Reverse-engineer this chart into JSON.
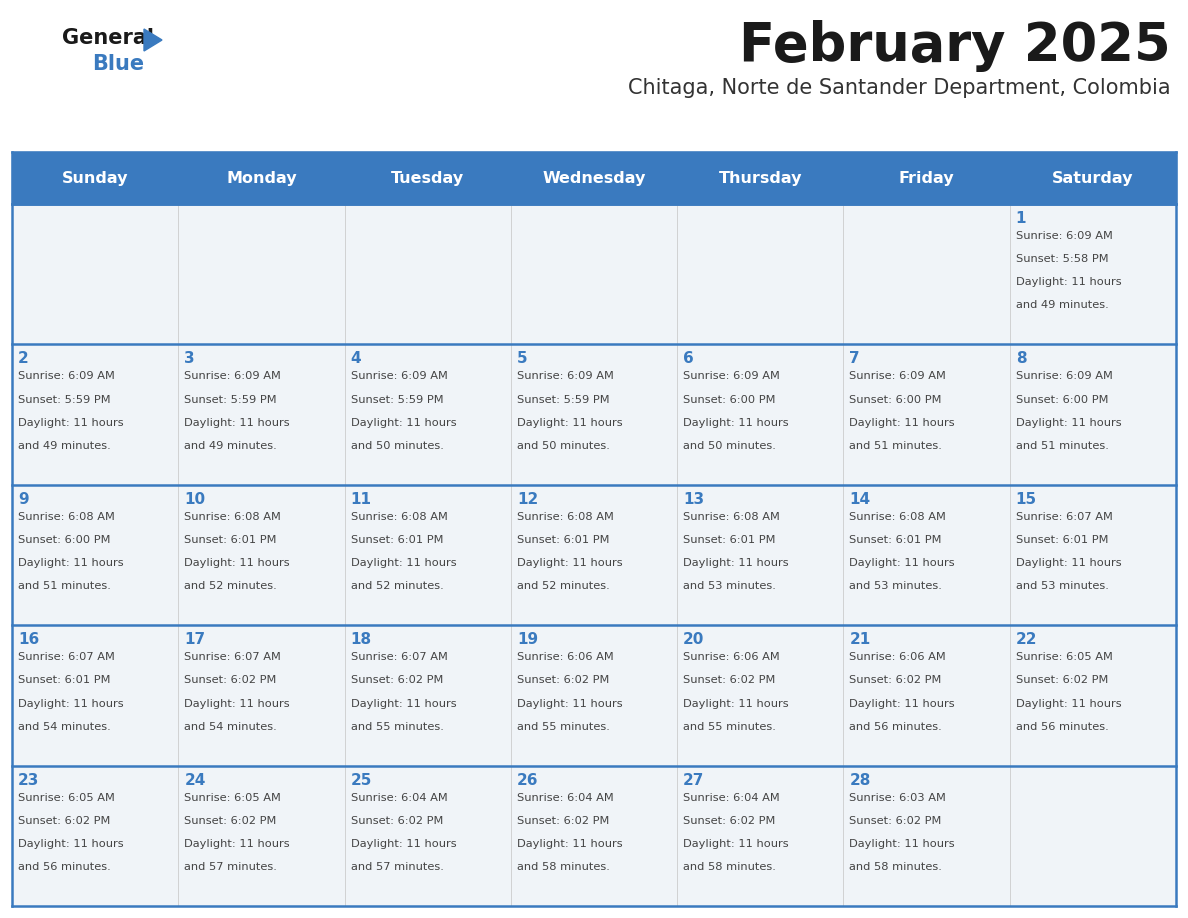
{
  "title": "February 2025",
  "subtitle": "Chitaga, Norte de Santander Department, Colombia",
  "header_bg": "#3a7abf",
  "header_text_color": "#ffffff",
  "day_names": [
    "Sunday",
    "Monday",
    "Tuesday",
    "Wednesday",
    "Thursday",
    "Friday",
    "Saturday"
  ],
  "cell_bg": "#f0f4f8",
  "divider_color": "#3a7abf",
  "number_color": "#3a7abf",
  "text_color": "#444444",
  "calendar": [
    [
      null,
      null,
      null,
      null,
      null,
      null,
      {
        "day": 1,
        "sunrise": "6:09 AM",
        "sunset": "5:58 PM",
        "daylight": "11 hours and 49 minutes"
      }
    ],
    [
      {
        "day": 2,
        "sunrise": "6:09 AM",
        "sunset": "5:59 PM",
        "daylight": "11 hours and 49 minutes"
      },
      {
        "day": 3,
        "sunrise": "6:09 AM",
        "sunset": "5:59 PM",
        "daylight": "11 hours and 49 minutes"
      },
      {
        "day": 4,
        "sunrise": "6:09 AM",
        "sunset": "5:59 PM",
        "daylight": "11 hours and 50 minutes"
      },
      {
        "day": 5,
        "sunrise": "6:09 AM",
        "sunset": "5:59 PM",
        "daylight": "11 hours and 50 minutes"
      },
      {
        "day": 6,
        "sunrise": "6:09 AM",
        "sunset": "6:00 PM",
        "daylight": "11 hours and 50 minutes"
      },
      {
        "day": 7,
        "sunrise": "6:09 AM",
        "sunset": "6:00 PM",
        "daylight": "11 hours and 51 minutes"
      },
      {
        "day": 8,
        "sunrise": "6:09 AM",
        "sunset": "6:00 PM",
        "daylight": "11 hours and 51 minutes"
      }
    ],
    [
      {
        "day": 9,
        "sunrise": "6:08 AM",
        "sunset": "6:00 PM",
        "daylight": "11 hours and 51 minutes"
      },
      {
        "day": 10,
        "sunrise": "6:08 AM",
        "sunset": "6:01 PM",
        "daylight": "11 hours and 52 minutes"
      },
      {
        "day": 11,
        "sunrise": "6:08 AM",
        "sunset": "6:01 PM",
        "daylight": "11 hours and 52 minutes"
      },
      {
        "day": 12,
        "sunrise": "6:08 AM",
        "sunset": "6:01 PM",
        "daylight": "11 hours and 52 minutes"
      },
      {
        "day": 13,
        "sunrise": "6:08 AM",
        "sunset": "6:01 PM",
        "daylight": "11 hours and 53 minutes"
      },
      {
        "day": 14,
        "sunrise": "6:08 AM",
        "sunset": "6:01 PM",
        "daylight": "11 hours and 53 minutes"
      },
      {
        "day": 15,
        "sunrise": "6:07 AM",
        "sunset": "6:01 PM",
        "daylight": "11 hours and 53 minutes"
      }
    ],
    [
      {
        "day": 16,
        "sunrise": "6:07 AM",
        "sunset": "6:01 PM",
        "daylight": "11 hours and 54 minutes"
      },
      {
        "day": 17,
        "sunrise": "6:07 AM",
        "sunset": "6:02 PM",
        "daylight": "11 hours and 54 minutes"
      },
      {
        "day": 18,
        "sunrise": "6:07 AM",
        "sunset": "6:02 PM",
        "daylight": "11 hours and 55 minutes"
      },
      {
        "day": 19,
        "sunrise": "6:06 AM",
        "sunset": "6:02 PM",
        "daylight": "11 hours and 55 minutes"
      },
      {
        "day": 20,
        "sunrise": "6:06 AM",
        "sunset": "6:02 PM",
        "daylight": "11 hours and 55 minutes"
      },
      {
        "day": 21,
        "sunrise": "6:06 AM",
        "sunset": "6:02 PM",
        "daylight": "11 hours and 56 minutes"
      },
      {
        "day": 22,
        "sunrise": "6:05 AM",
        "sunset": "6:02 PM",
        "daylight": "11 hours and 56 minutes"
      }
    ],
    [
      {
        "day": 23,
        "sunrise": "6:05 AM",
        "sunset": "6:02 PM",
        "daylight": "11 hours and 56 minutes"
      },
      {
        "day": 24,
        "sunrise": "6:05 AM",
        "sunset": "6:02 PM",
        "daylight": "11 hours and 57 minutes"
      },
      {
        "day": 25,
        "sunrise": "6:04 AM",
        "sunset": "6:02 PM",
        "daylight": "11 hours and 57 minutes"
      },
      {
        "day": 26,
        "sunrise": "6:04 AM",
        "sunset": "6:02 PM",
        "daylight": "11 hours and 58 minutes"
      },
      {
        "day": 27,
        "sunrise": "6:04 AM",
        "sunset": "6:02 PM",
        "daylight": "11 hours and 58 minutes"
      },
      {
        "day": 28,
        "sunrise": "6:03 AM",
        "sunset": "6:02 PM",
        "daylight": "11 hours and 58 minutes"
      },
      null
    ]
  ],
  "logo_text1": "General",
  "logo_text2": "Blue",
  "logo_color1": "#1a1a1a",
  "logo_color2": "#3a7abf",
  "logo_triangle_color": "#3a7abf",
  "fig_width": 11.88,
  "fig_height": 9.18,
  "dpi": 100
}
